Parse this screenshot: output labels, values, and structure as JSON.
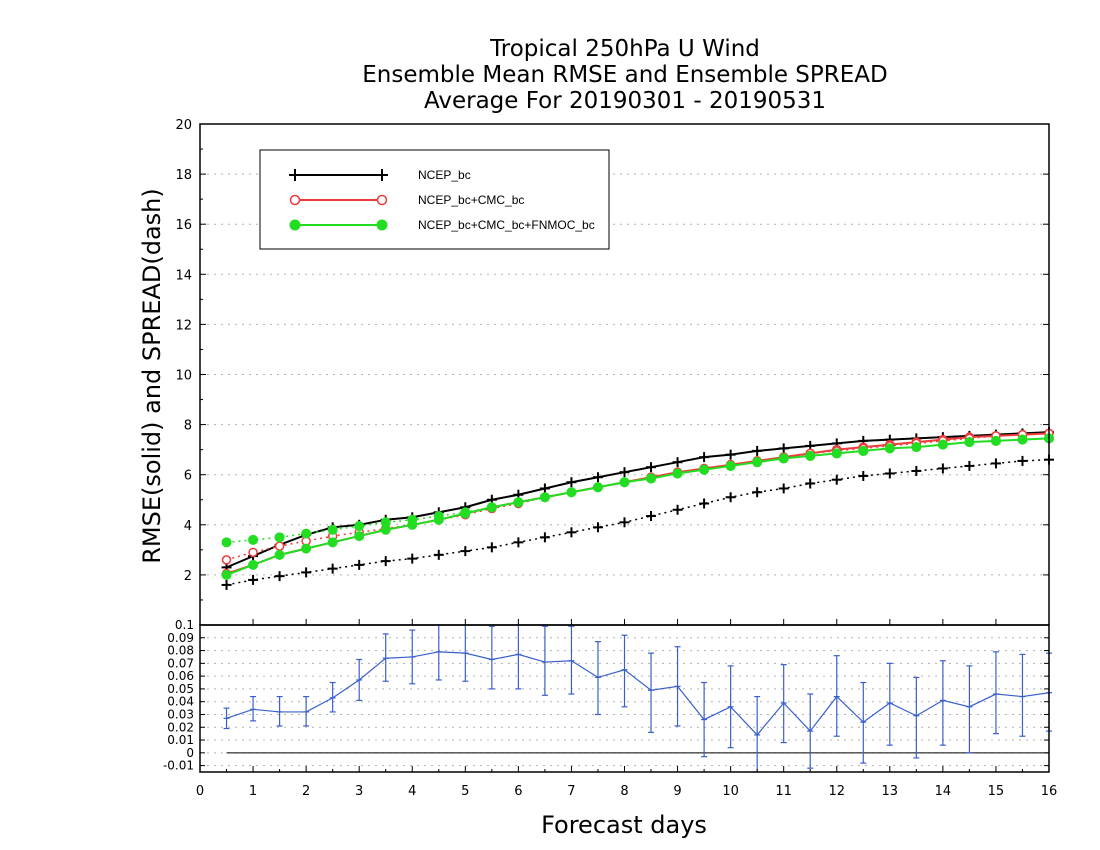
{
  "title": {
    "line1": "Tropical 250hPa U Wind",
    "line2": "Ensemble Mean RMSE and Ensemble SPREAD",
    "line3": "Average For 20190301 - 20190531"
  },
  "chart_data": [
    {
      "type": "line",
      "ylabel": "RMSE(solid) and SPREAD(dash)",
      "xlabel": "Forecast days",
      "xlim": [
        0,
        16
      ],
      "ylim": [
        0,
        20
      ],
      "x_ticks": [
        "0",
        "1",
        "2",
        "3",
        "4",
        "5",
        "6",
        "7",
        "8",
        "9",
        "10",
        "11",
        "12",
        "13",
        "14",
        "15",
        "16"
      ],
      "y_ticks": [
        "2",
        "4",
        "6",
        "8",
        "10",
        "12",
        "14",
        "16",
        "18",
        "20"
      ],
      "grid": true,
      "legend_position": "top-left",
      "x": [
        0.5,
        1,
        1.5,
        2,
        2.5,
        3,
        3.5,
        4,
        4.5,
        5,
        5.5,
        6,
        6.5,
        7,
        7.5,
        8,
        8.5,
        9,
        9.5,
        10,
        10.5,
        11,
        11.5,
        12,
        12.5,
        13,
        13.5,
        14,
        14.5,
        15,
        15.5,
        16
      ],
      "series": [
        {
          "name": "NCEP_bc",
          "color": "#000000",
          "marker": "plus",
          "rmse": [
            2.3,
            2.75,
            3.2,
            3.6,
            3.9,
            4.0,
            4.2,
            4.3,
            4.5,
            4.7,
            5.0,
            5.2,
            5.45,
            5.7,
            5.9,
            6.1,
            6.3,
            6.5,
            6.7,
            6.8,
            6.95,
            7.05,
            7.15,
            7.25,
            7.35,
            7.4,
            7.45,
            7.5,
            7.55,
            7.6,
            7.65,
            7.7
          ],
          "spread": [
            1.6,
            1.8,
            1.95,
            2.1,
            2.25,
            2.4,
            2.55,
            2.65,
            2.8,
            2.95,
            3.1,
            3.3,
            3.5,
            3.7,
            3.9,
            4.1,
            4.35,
            4.6,
            4.85,
            5.1,
            5.3,
            5.45,
            5.65,
            5.8,
            5.95,
            6.05,
            6.15,
            6.25,
            6.35,
            6.45,
            6.55,
            6.6
          ]
        },
        {
          "name": "NCEP_bc+CMC_bc",
          "color": "#ee3b3b",
          "marker": "open-circle",
          "rmse": [
            2.05,
            2.4,
            2.8,
            3.05,
            3.3,
            3.55,
            3.8,
            4.0,
            4.2,
            4.45,
            4.7,
            4.9,
            5.1,
            5.3,
            5.5,
            5.7,
            5.9,
            6.1,
            6.25,
            6.4,
            6.55,
            6.7,
            6.85,
            7.0,
            7.1,
            7.2,
            7.3,
            7.4,
            7.5,
            7.55,
            7.6,
            7.65
          ],
          "spread": [
            2.6,
            2.9,
            3.15,
            3.35,
            3.55,
            3.7,
            3.85,
            4.0,
            4.2,
            4.4,
            4.65,
            4.85,
            5.1,
            5.3,
            5.5,
            5.7,
            5.9,
            6.1,
            6.25,
            6.4,
            6.55,
            6.7,
            6.85,
            6.95,
            7.05,
            7.15,
            7.25,
            7.35,
            7.45,
            7.55,
            7.6,
            7.65
          ]
        },
        {
          "name": "NCEP_bc+CMC_bc+FNMOC_bc",
          "color": "#22dd22",
          "marker": "filled-circle",
          "rmse": [
            2.0,
            2.4,
            2.8,
            3.05,
            3.3,
            3.55,
            3.8,
            4.0,
            4.2,
            4.45,
            4.7,
            4.9,
            5.1,
            5.3,
            5.5,
            5.7,
            5.85,
            6.05,
            6.2,
            6.35,
            6.5,
            6.65,
            6.75,
            6.85,
            6.95,
            7.05,
            7.1,
            7.2,
            7.3,
            7.35,
            7.4,
            7.45
          ],
          "spread": [
            3.3,
            3.4,
            3.5,
            3.65,
            3.8,
            3.95,
            4.1,
            4.2,
            4.35,
            4.5,
            4.7,
            4.9,
            5.1,
            5.3,
            5.5,
            5.7,
            5.85,
            6.05,
            6.2,
            6.35,
            6.5,
            6.65,
            6.75,
            6.85,
            6.95,
            7.05,
            7.1,
            7.2,
            7.3,
            7.35,
            7.4,
            7.45
          ]
        }
      ]
    },
    {
      "type": "line",
      "xlabel": "Forecast days",
      "xlim": [
        0,
        16
      ],
      "ylim": [
        -0.015,
        0.1
      ],
      "y_ticks": [
        "-0.01",
        "0",
        "0.01",
        "0.02",
        "0.03",
        "0.04",
        "0.05",
        "0.06",
        "0.07",
        "0.08",
        "0.09",
        "0.1"
      ],
      "grid": true,
      "color": "#3a5fcd",
      "x": [
        0.5,
        1,
        1.5,
        2,
        2.5,
        3,
        3.5,
        4,
        4.5,
        5,
        5.5,
        6,
        6.5,
        7,
        7.5,
        8,
        8.5,
        9,
        9.5,
        10,
        10.5,
        11,
        11.5,
        12,
        12.5,
        13,
        13.5,
        14,
        14.5,
        15,
        15.5,
        16
      ],
      "values": [
        0.027,
        0.034,
        0.032,
        0.032,
        0.043,
        0.057,
        0.074,
        0.075,
        0.079,
        0.078,
        0.073,
        0.077,
        0.071,
        0.072,
        0.059,
        0.065,
        0.049,
        0.052,
        0.026,
        0.036,
        0.014,
        0.039,
        0.017,
        0.044,
        0.024,
        0.039,
        0.029,
        0.041,
        0.036,
        0.046,
        0.044,
        0.047
      ],
      "error_low": [
        0.019,
        0.025,
        0.021,
        0.021,
        0.032,
        0.041,
        0.056,
        0.054,
        0.057,
        0.056,
        0.05,
        0.05,
        0.045,
        0.046,
        0.03,
        0.036,
        0.016,
        0.021,
        -0.003,
        0.004,
        -0.015,
        0.008,
        -0.012,
        0.013,
        -0.008,
        0.006,
        -0.004,
        0.006,
        0.0,
        0.015,
        0.013,
        0.017
      ],
      "error_high": [
        0.035,
        0.044,
        0.044,
        0.044,
        0.055,
        0.073,
        0.093,
        0.096,
        0.101,
        0.101,
        0.099,
        0.1,
        0.099,
        0.099,
        0.087,
        0.092,
        0.078,
        0.083,
        0.055,
        0.068,
        0.044,
        0.069,
        0.046,
        0.076,
        0.055,
        0.07,
        0.059,
        0.072,
        0.068,
        0.079,
        0.077,
        0.078
      ],
      "reference_line": 0
    }
  ]
}
